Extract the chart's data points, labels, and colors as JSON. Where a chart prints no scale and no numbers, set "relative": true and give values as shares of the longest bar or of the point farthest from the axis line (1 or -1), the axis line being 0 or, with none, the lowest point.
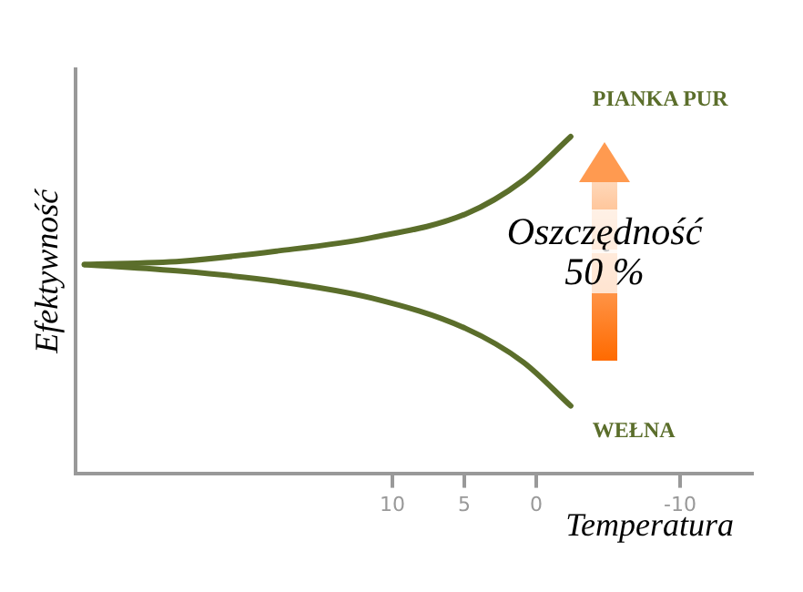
{
  "chart_data": {
    "type": "line",
    "relative": true,
    "xlabel": "Temperatura",
    "ylabel": "Efektywność",
    "xlim": [
      32,
      -15
    ],
    "xticks": [
      10,
      5,
      0,
      -10
    ],
    "grid": false,
    "legend": false,
    "marker": "none",
    "line_style": "solid",
    "annotations": [
      "Oszczędność 50 %"
    ],
    "series": [
      {
        "name": "PIANKA PUR",
        "color": "#5b6e2b",
        "x": [
          31.4,
          24.6,
          18.0,
          11.4,
          4.9,
          0.9,
          -2.4
        ],
        "values": [
          0.62,
          0.63,
          0.66,
          0.7,
          0.77,
          0.87,
          1
        ]
      },
      {
        "name": "WEŁNA",
        "color": "#5b6e2b",
        "x": [
          31.4,
          24.6,
          18.0,
          11.4,
          4.9,
          0.9,
          -2.4
        ],
        "values": [
          0.62,
          0.6,
          0.57,
          0.52,
          0.43,
          0.33,
          0.2
        ]
      }
    ]
  }
}
